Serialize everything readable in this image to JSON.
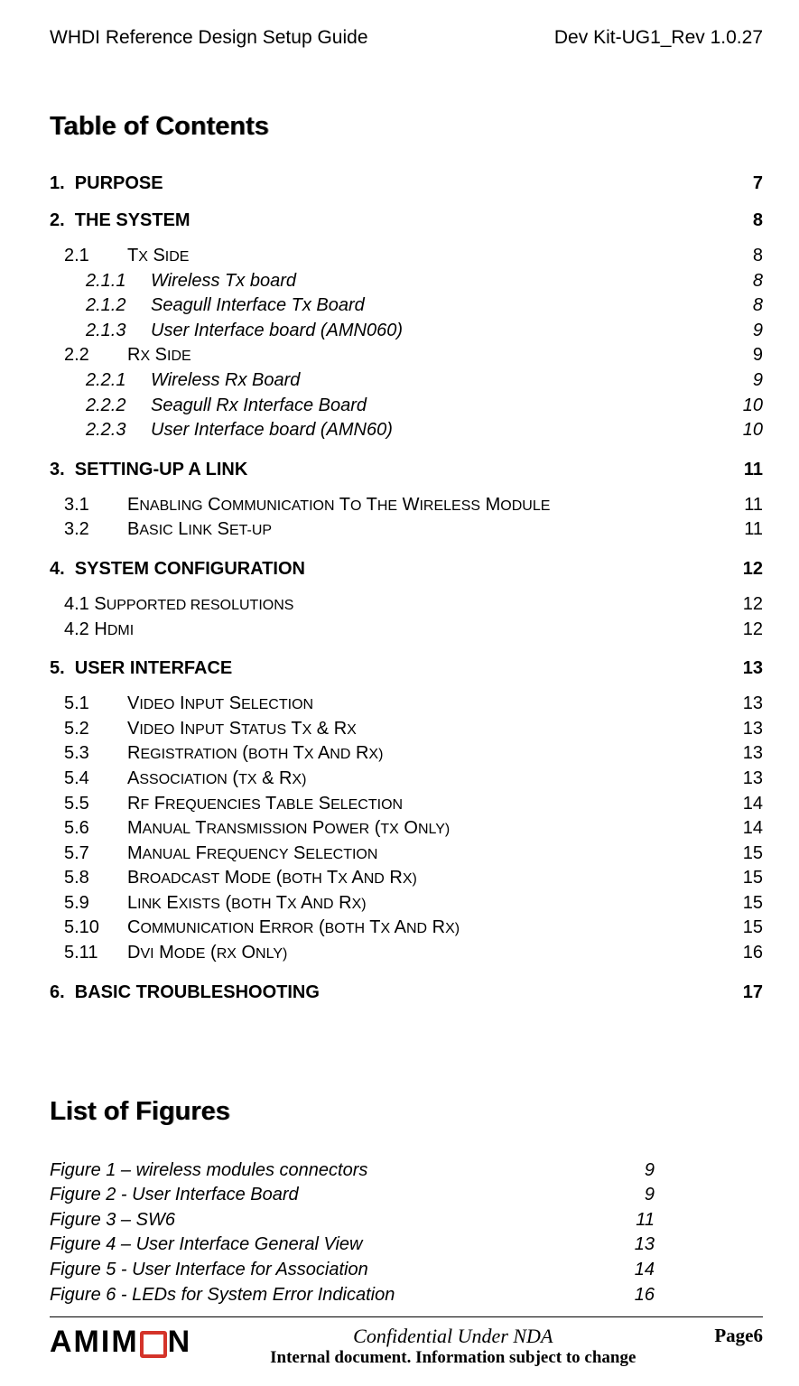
{
  "header": {
    "left": "WHDI Reference Design Setup Guide",
    "right": "Dev Kit-UG1_Rev 1.0.27"
  },
  "toc": {
    "title": "Table of Contents",
    "entries": [
      {
        "level": 1,
        "num": "1.",
        "label": "PURPOSE",
        "page": "7"
      },
      {
        "level": 1,
        "num": "2.",
        "label": "THE SYSTEM",
        "page": "8"
      },
      {
        "level": 2,
        "num": "2.1",
        "label_sc": "Tx side",
        "page": "8"
      },
      {
        "level": 3,
        "num": "2.1.1",
        "label": "Wireless Tx board",
        "page": "8"
      },
      {
        "level": 3,
        "num": "2.1.2",
        "label": "Seagull Interface Tx Board",
        "page": "8"
      },
      {
        "level": 3,
        "num": "2.1.3",
        "label": "User Interface board (AMN060)",
        "page": "9"
      },
      {
        "level": 2,
        "num": "2.2",
        "label_sc": "Rx side",
        "page": "9"
      },
      {
        "level": 3,
        "num": "2.2.1",
        "label": "Wireless Rx Board",
        "page": "9"
      },
      {
        "level": 3,
        "num": "2.2.2",
        "label": "Seagull Rx Interface Board",
        "page": "10"
      },
      {
        "level": 3,
        "num": "2.2.3",
        "label": "User Interface board (AMN60)",
        "page": "10"
      },
      {
        "level": 1,
        "num": "3.",
        "label": "SETTING-UP A LINK",
        "page": "11"
      },
      {
        "level": 2,
        "num": "3.1",
        "label_sc": "Enabling communication to the wireless module",
        "page": "11"
      },
      {
        "level": 2,
        "num": "3.2",
        "label_sc": "Basic Link Set-Up",
        "page": "11"
      },
      {
        "level": 1,
        "num": "4.",
        "label": "SYSTEM CONFIGURATION",
        "page": "12"
      },
      {
        "level": 2,
        "num": "4.1",
        "label_sc": "Supported resolutions",
        "label_plain": true,
        "page": "12"
      },
      {
        "level": 2,
        "num": "4.2",
        "label_sc": "HDMI",
        "label_plain": true,
        "page": "12"
      },
      {
        "level": 1,
        "num": "5.",
        "label": "USER INTERFACE",
        "page": "13"
      },
      {
        "level": 2,
        "num": "5.1",
        "label_sc": "Video Input selection",
        "page": "13"
      },
      {
        "level": 2,
        "num": "5.2",
        "label_sc": "Video input status Tx & Rx",
        "page": "13"
      },
      {
        "level": 2,
        "num": "5.3",
        "label_sc": "Registration (both Tx and Rx)",
        "page": "13"
      },
      {
        "level": 2,
        "num": "5.4",
        "label_sc": "Association (Tx & Rx)",
        "page": "13"
      },
      {
        "level": 2,
        "num": "5.5",
        "label_sc": "RF frequencies table selection",
        "page": "14"
      },
      {
        "level": 2,
        "num": "5.6",
        "label_sc": "Manual Transmission power (Tx only)",
        "page": "14"
      },
      {
        "level": 2,
        "num": "5.7",
        "label_sc": "Manual frequency selection",
        "page": "15"
      },
      {
        "level": 2,
        "num": "5.8",
        "label_sc": "Broadcast mode (both Tx and Rx)",
        "page": "15"
      },
      {
        "level": 2,
        "num": "5.9",
        "label_sc": "Link exists (both Tx and Rx)",
        "page": "15"
      },
      {
        "level": 2,
        "num": "5.10",
        "label_sc": "Communication error (both Tx and Rx)",
        "page": "15"
      },
      {
        "level": 2,
        "num": "5.11",
        "label_sc": "DVI mode (Rx Only)",
        "page": "16"
      },
      {
        "level": 1,
        "num": "6.",
        "label": "BASIC TROUBLESHOOTING",
        "page": "17"
      }
    ]
  },
  "figures": {
    "title": "List of Figures",
    "entries": [
      {
        "label": "Figure 1 – wireless modules connectors",
        "page": "9"
      },
      {
        "label": "Figure 2 - User Interface Board",
        "page": "9"
      },
      {
        "label": "Figure 3  – SW6",
        "page": "11"
      },
      {
        "label": "Figure 4 – User Interface General View",
        "page": "13"
      },
      {
        "label": "Figure 5 - User Interface for Association",
        "page": "14"
      },
      {
        "label": "Figure 6 - LEDs for System Error Indication",
        "page": "16"
      }
    ]
  },
  "footer": {
    "logo_a": "AMIM",
    "logo_b": "N",
    "confidential": "Confidential Under NDA",
    "internal": "Internal document. Information subject to change",
    "page": "Page6"
  }
}
